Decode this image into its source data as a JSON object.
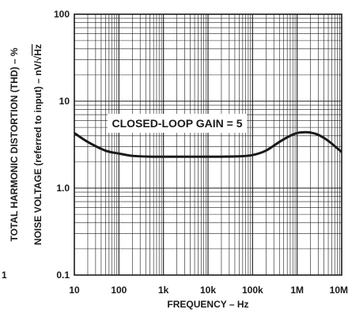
{
  "chart_data": {
    "type": "line",
    "title": "",
    "xlabel": "FREQUENCY – Hz",
    "ylabel_outer": "TOTAL HARMONIC DISTORTION (THD) – %",
    "ylabel_inner": "NOISE VOLTAGE (referred to input) – nV/√Hz",
    "ylabel_inner_main": "NOISE VOLTAGE (referred to input) – nV/",
    "ylabel_inner_unit": "Hz",
    "xscale": "log",
    "yscale": "log",
    "xlim": [
      10,
      10000000
    ],
    "ylim": [
      0.1,
      100
    ],
    "grid": true,
    "x_tick_labels": [
      "10",
      "100",
      "1k",
      "10k",
      "100k",
      "1M",
      "10M"
    ],
    "y_tick_labels": [
      "0.1",
      "1.0",
      "10",
      "100"
    ],
    "left_edge_label": "1",
    "annotation": "CLOSED-LOOP GAIN = 5",
    "series": [
      {
        "color": "#1a1a1a",
        "x": [
          10,
          20,
          50,
          100,
          200,
          500,
          1000,
          2000,
          5000,
          10000,
          20000,
          50000,
          100000,
          200000,
          400000,
          700000,
          1000000,
          1500000,
          2000000,
          3000000,
          5000000,
          10000000
        ],
        "y": [
          4.3,
          3.4,
          2.7,
          2.5,
          2.35,
          2.3,
          2.3,
          2.3,
          2.3,
          2.3,
          2.3,
          2.32,
          2.4,
          2.7,
          3.4,
          4.0,
          4.3,
          4.4,
          4.35,
          4.1,
          3.5,
          2.6
        ]
      }
    ]
  }
}
